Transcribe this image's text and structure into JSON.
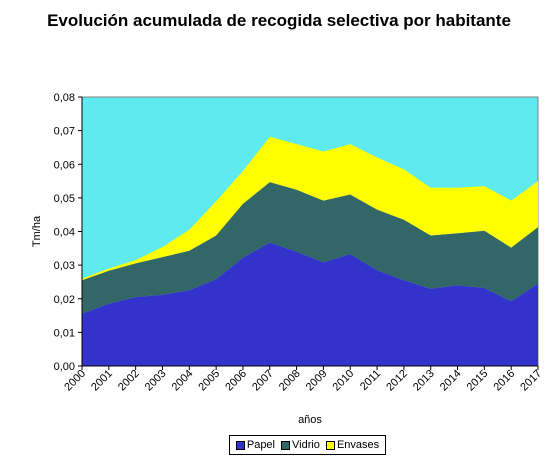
{
  "chart_data": {
    "type": "area",
    "title": "Evolución acumulada de recogida selectiva por habitante",
    "xlabel": "años",
    "ylabel": "Tm/ha",
    "ylim": [
      0,
      0.08
    ],
    "yticks": [
      "0,00",
      "0,01",
      "0,02",
      "0,03",
      "0,04",
      "0,05",
      "0,06",
      "0,07",
      "0,08"
    ],
    "categories": [
      "2000",
      "2001",
      "2002",
      "2003",
      "2004",
      "2005",
      "2006",
      "2007",
      "2008",
      "2009",
      "2010",
      "2011",
      "2012",
      "2013",
      "2014",
      "2015",
      "2016",
      "2017"
    ],
    "stacked": true,
    "plot_background": "#5EEAEE",
    "series": [
      {
        "name": "Papel",
        "color": "#3333CC",
        "values": [
          0.0155,
          0.0185,
          0.0205,
          0.0212,
          0.0225,
          0.0258,
          0.0322,
          0.0367,
          0.034,
          0.0308,
          0.0333,
          0.0285,
          0.0255,
          0.023,
          0.024,
          0.0232,
          0.0192,
          0.0245
        ]
      },
      {
        "name": "Vidrio",
        "color": "#336666",
        "values": [
          0.01,
          0.0098,
          0.01,
          0.0112,
          0.0118,
          0.013,
          0.016,
          0.018,
          0.0184,
          0.0184,
          0.0177,
          0.018,
          0.018,
          0.0158,
          0.0155,
          0.017,
          0.016,
          0.0168
        ]
      },
      {
        "name": "Envases",
        "color": "#FFFF00",
        "values": [
          0.0005,
          0.0007,
          0.001,
          0.003,
          0.0062,
          0.0102,
          0.0098,
          0.0135,
          0.0136,
          0.0146,
          0.015,
          0.0155,
          0.015,
          0.0142,
          0.0135,
          0.0133,
          0.014,
          0.0137
        ]
      }
    ],
    "legend": "bottom"
  }
}
